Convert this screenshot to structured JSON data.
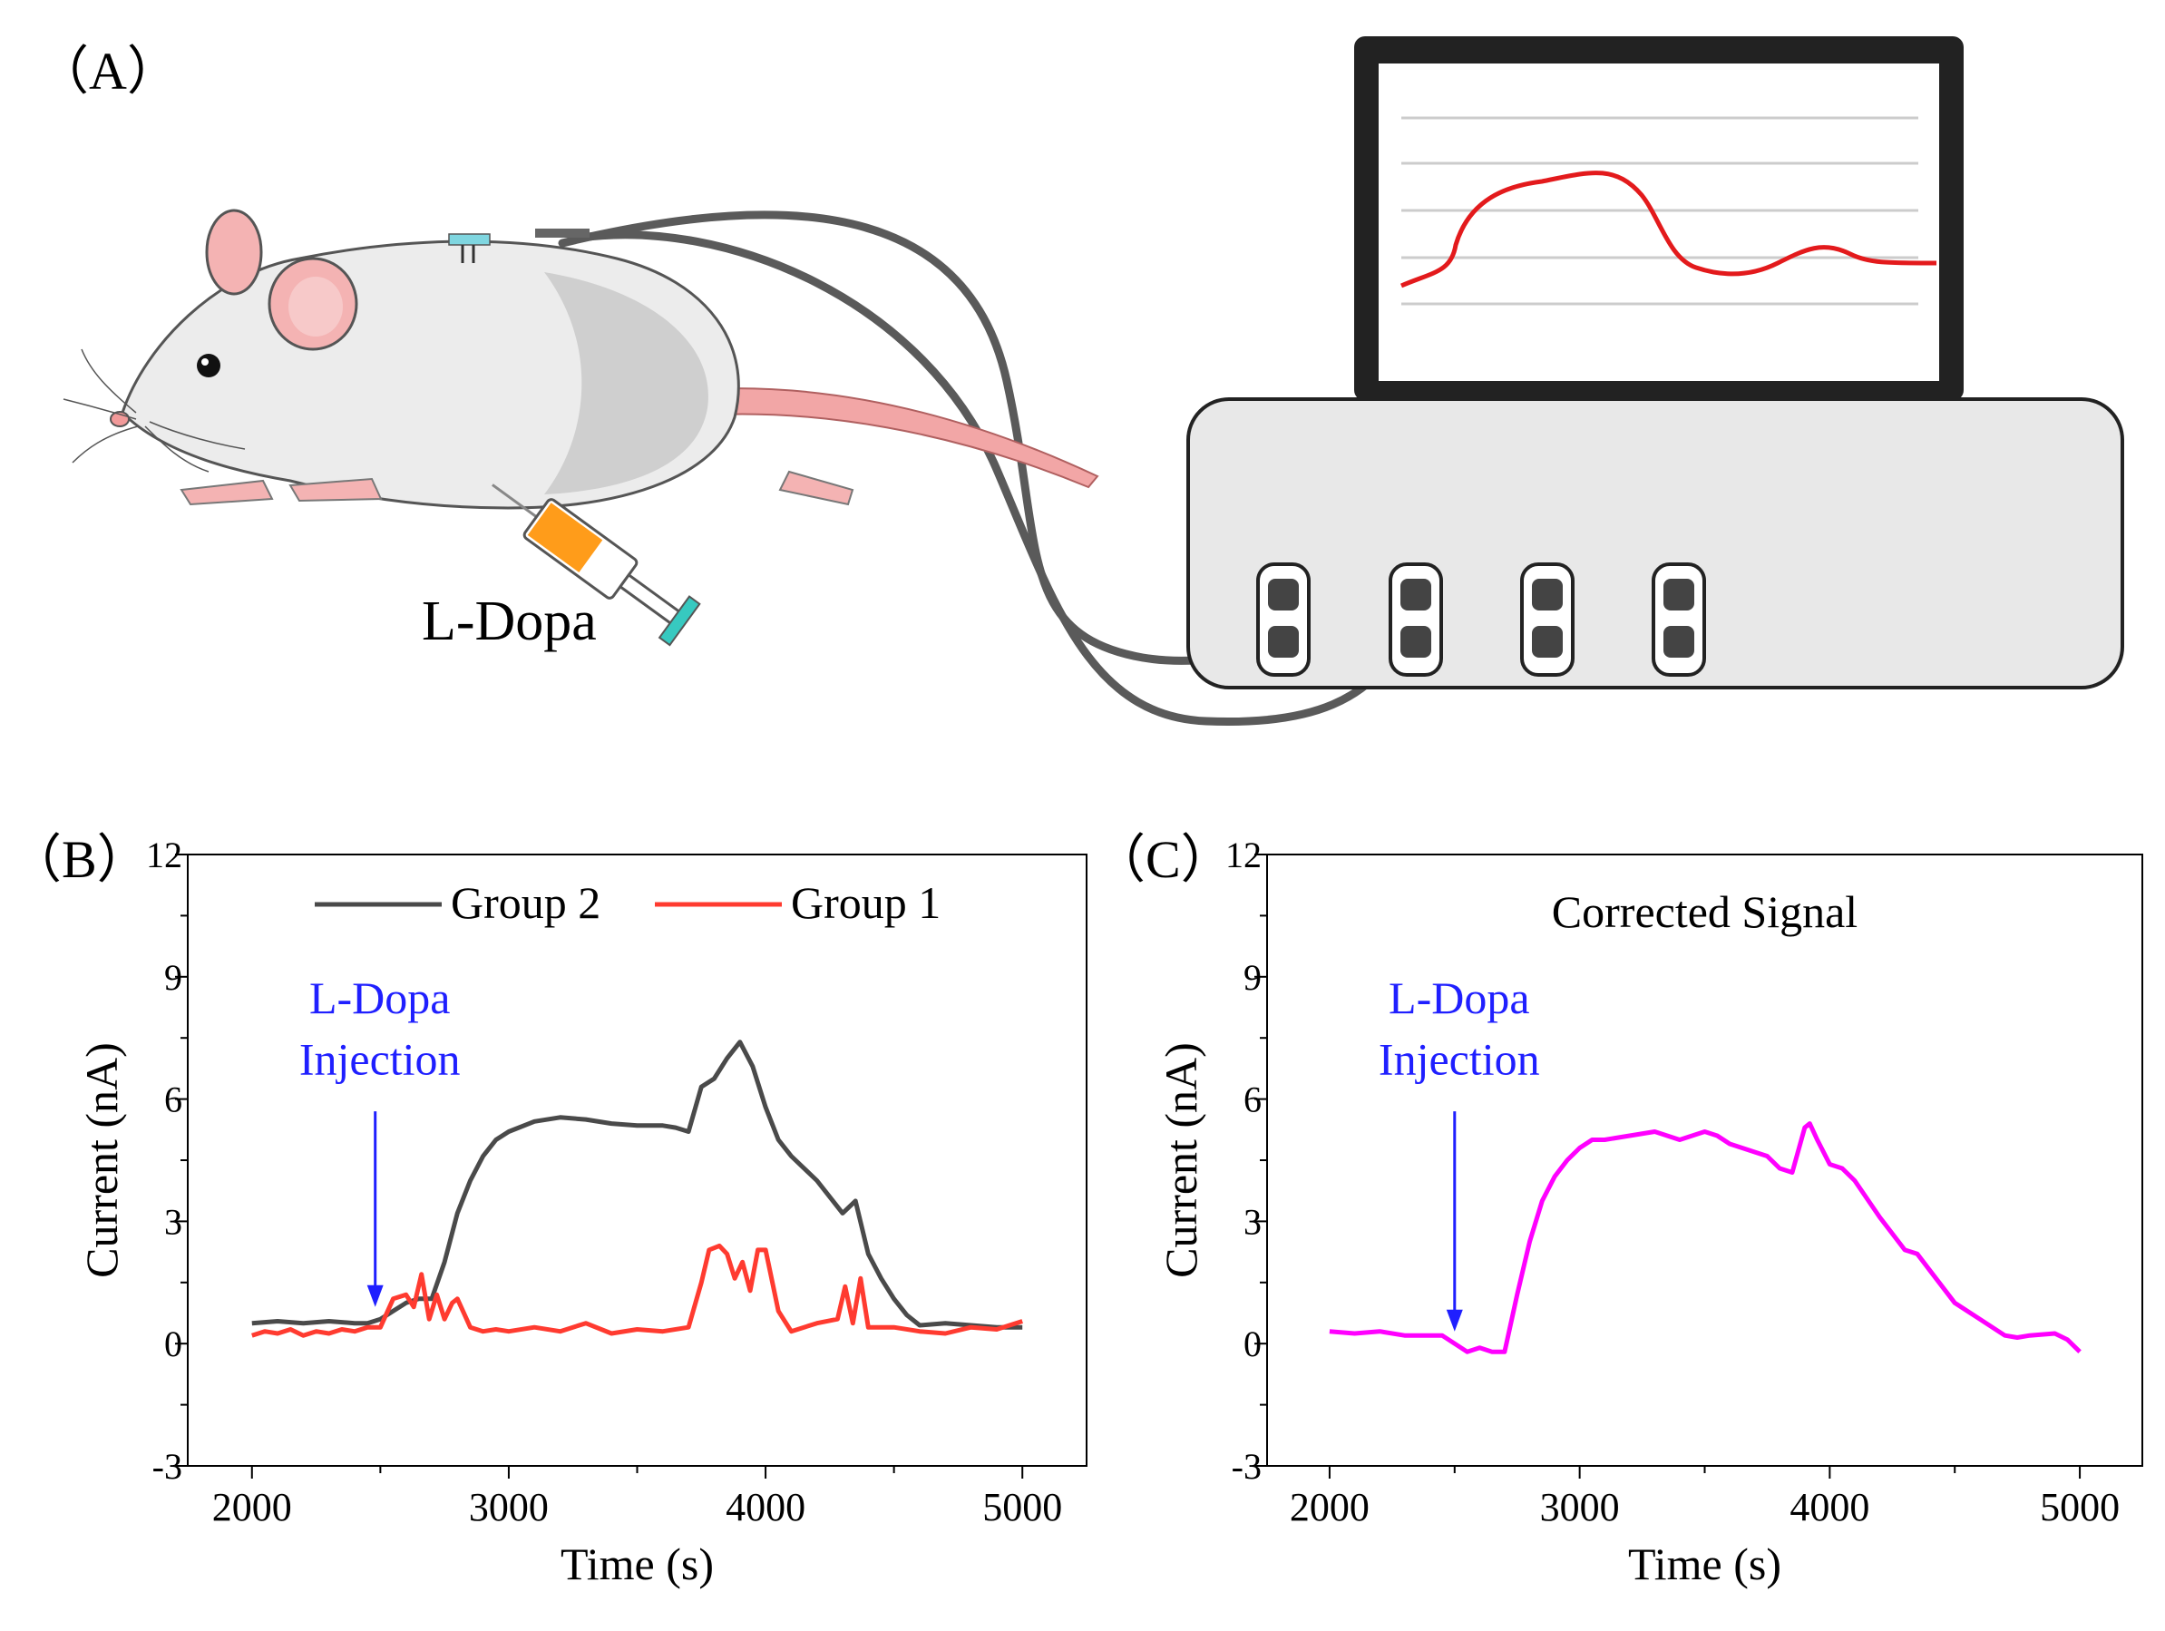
{
  "panel_a": {
    "label": "（A）",
    "injection_label": "L-Dopa",
    "screen_trace_color": "#e31a1c"
  },
  "chart_data": [
    {
      "id": "B",
      "panel_label": "（B）",
      "type": "line",
      "xlabel": "Time (s)",
      "ylabel": "Current (nA)",
      "xlim": [
        1750,
        5250
      ],
      "ylim": [
        -3,
        12
      ],
      "xticks": [
        2000,
        3000,
        4000,
        5000
      ],
      "yticks": [
        -3,
        0,
        3,
        6,
        9,
        12
      ],
      "grid": false,
      "legend_position": "top-center",
      "annotation": {
        "lines": [
          "L-Dopa",
          "Injection"
        ],
        "x": 2480,
        "arrow_to_y": 0.9,
        "color": "#1f1fff"
      },
      "series": [
        {
          "name": "Group 2",
          "color": "#4a4a4a",
          "x": [
            2000,
            2100,
            2200,
            2300,
            2400,
            2450,
            2500,
            2550,
            2600,
            2650,
            2700,
            2750,
            2800,
            2850,
            2900,
            2950,
            3000,
            3100,
            3200,
            3300,
            3400,
            3500,
            3600,
            3650,
            3700,
            3750,
            3800,
            3850,
            3900,
            3950,
            4000,
            4050,
            4100,
            4200,
            4300,
            4350,
            4400,
            4450,
            4500,
            4550,
            4600,
            4700,
            4800,
            4900,
            5000
          ],
          "y": [
            0.5,
            0.55,
            0.5,
            0.55,
            0.5,
            0.5,
            0.6,
            0.8,
            1.0,
            1.1,
            1.1,
            2.0,
            3.2,
            4.0,
            4.6,
            5.0,
            5.2,
            5.45,
            5.55,
            5.5,
            5.4,
            5.35,
            5.35,
            5.3,
            5.2,
            6.3,
            6.5,
            7.0,
            7.4,
            6.8,
            5.8,
            5.0,
            4.6,
            4.0,
            3.2,
            3.5,
            2.2,
            1.6,
            1.1,
            0.7,
            0.45,
            0.5,
            0.45,
            0.4,
            0.4
          ]
        },
        {
          "name": "Group 1",
          "color": "#ff3b30",
          "x": [
            2000,
            2050,
            2100,
            2150,
            2200,
            2250,
            2300,
            2350,
            2400,
            2450,
            2500,
            2550,
            2600,
            2630,
            2660,
            2690,
            2720,
            2750,
            2780,
            2800,
            2850,
            2900,
            2950,
            3000,
            3100,
            3200,
            3300,
            3400,
            3500,
            3600,
            3700,
            3750,
            3780,
            3820,
            3850,
            3880,
            3910,
            3940,
            3970,
            4000,
            4050,
            4100,
            4200,
            4280,
            4310,
            4340,
            4370,
            4400,
            4500,
            4600,
            4700,
            4800,
            4900,
            5000
          ],
          "y": [
            0.2,
            0.3,
            0.25,
            0.35,
            0.2,
            0.3,
            0.25,
            0.35,
            0.3,
            0.4,
            0.4,
            1.1,
            1.2,
            0.9,
            1.7,
            0.6,
            1.2,
            0.6,
            1.0,
            1.1,
            0.4,
            0.3,
            0.35,
            0.3,
            0.4,
            0.3,
            0.5,
            0.25,
            0.35,
            0.3,
            0.4,
            1.5,
            2.3,
            2.4,
            2.2,
            1.6,
            2.0,
            1.3,
            2.3,
            2.3,
            0.8,
            0.3,
            0.5,
            0.6,
            1.4,
            0.5,
            1.6,
            0.4,
            0.4,
            0.3,
            0.25,
            0.4,
            0.35,
            0.55
          ]
        }
      ]
    },
    {
      "id": "C",
      "panel_label": "（C）",
      "type": "line",
      "title": "Corrected Signal",
      "xlabel": "Time (s)",
      "ylabel": "Current (nA)",
      "xlim": [
        1750,
        5250
      ],
      "ylim": [
        -3,
        12
      ],
      "xticks": [
        2000,
        3000,
        4000,
        5000
      ],
      "yticks": [
        -3,
        0,
        3,
        6,
        9,
        12
      ],
      "grid": false,
      "annotation": {
        "lines": [
          "L-Dopa",
          "Injection"
        ],
        "x": 2500,
        "arrow_to_y": 0.3,
        "color": "#1f1fff"
      },
      "series": [
        {
          "name": "Corrected Signal",
          "color": "#ff00ff",
          "x": [
            2000,
            2100,
            2200,
            2300,
            2400,
            2450,
            2500,
            2550,
            2600,
            2650,
            2700,
            2750,
            2800,
            2850,
            2900,
            2950,
            3000,
            3050,
            3100,
            3200,
            3300,
            3400,
            3500,
            3550,
            3600,
            3700,
            3750,
            3800,
            3850,
            3900,
            3920,
            3950,
            4000,
            4050,
            4100,
            4200,
            4300,
            4350,
            4400,
            4500,
            4600,
            4700,
            4750,
            4800,
            4900,
            4950,
            5000
          ],
          "y": [
            0.3,
            0.25,
            0.3,
            0.2,
            0.2,
            0.2,
            0.0,
            -0.2,
            -0.1,
            -0.2,
            -0.2,
            1.2,
            2.5,
            3.5,
            4.1,
            4.5,
            4.8,
            5.0,
            5.0,
            5.1,
            5.2,
            5.0,
            5.2,
            5.1,
            4.9,
            4.7,
            4.6,
            4.3,
            4.2,
            5.3,
            5.4,
            5.0,
            4.4,
            4.3,
            4.0,
            3.1,
            2.3,
            2.2,
            1.8,
            1.0,
            0.6,
            0.2,
            0.15,
            0.2,
            0.25,
            0.1,
            -0.2
          ]
        }
      ]
    }
  ]
}
